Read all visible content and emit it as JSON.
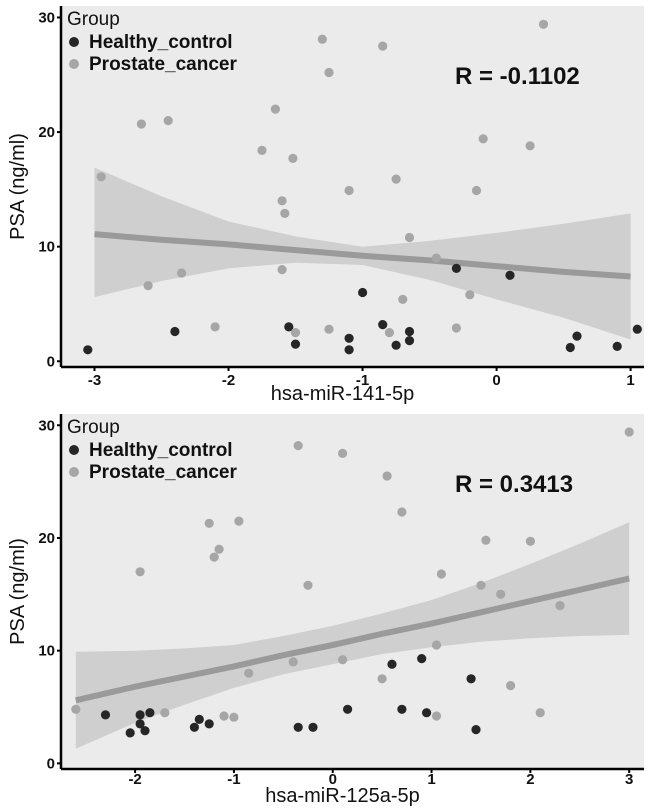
{
  "chart_data": [
    {
      "type": "scatter",
      "xlabel": "hsa-miR-141-5p",
      "ylabel": "PSA (ng/ml)",
      "xlim": [
        -3.25,
        1.1
      ],
      "ylim": [
        -0.5,
        31
      ],
      "xticks": [
        -3,
        -2,
        -1,
        0,
        1
      ],
      "yticks": [
        0,
        10,
        20,
        30
      ],
      "grid": false,
      "legend_position": "top-left",
      "legend_title": "Group",
      "annotation": "R = -0.1102",
      "regression": {
        "x": [
          -3.0,
          -2.5,
          -2.0,
          -1.5,
          -1.0,
          -0.5,
          0.0,
          0.5,
          1.0
        ],
        "y": [
          11.1,
          10.6,
          10.2,
          9.7,
          9.2,
          8.8,
          8.3,
          7.8,
          7.4
        ],
        "lower": [
          5.6,
          7.0,
          8.1,
          8.6,
          8.4,
          7.1,
          5.4,
          3.8,
          1.9
        ],
        "upper": [
          16.9,
          14.4,
          12.2,
          10.9,
          10.0,
          10.5,
          11.2,
          12.0,
          12.9
        ]
      },
      "series": [
        {
          "name": "Healthy_control",
          "color": "#262626",
          "points": [
            [
              -3.05,
              1.0
            ],
            [
              -2.4,
              2.6
            ],
            [
              -1.55,
              3.0
            ],
            [
              -1.5,
              1.5
            ],
            [
              -1.1,
              1.0
            ],
            [
              -1.1,
              2.0
            ],
            [
              -1.0,
              6.0
            ],
            [
              -0.85,
              3.2
            ],
            [
              -0.75,
              1.4
            ],
            [
              -0.65,
              2.6
            ],
            [
              -0.65,
              1.8
            ],
            [
              -0.3,
              8.1
            ],
            [
              0.1,
              7.5
            ],
            [
              0.6,
              2.2
            ],
            [
              0.55,
              1.2
            ],
            [
              0.9,
              1.3
            ],
            [
              1.05,
              2.8
            ]
          ]
        },
        {
          "name": "Prostate_cancer",
          "color": "#a6a6a6",
          "points": [
            [
              -2.95,
              16.1
            ],
            [
              -2.65,
              20.7
            ],
            [
              -2.45,
              21.0
            ],
            [
              -2.6,
              6.6
            ],
            [
              -2.35,
              7.7
            ],
            [
              -2.1,
              3.0
            ],
            [
              -1.75,
              18.4
            ],
            [
              -1.65,
              22.0
            ],
            [
              -1.6,
              14.0
            ],
            [
              -1.58,
              12.9
            ],
            [
              -1.52,
              17.7
            ],
            [
              -1.6,
              8.0
            ],
            [
              -1.5,
              2.5
            ],
            [
              -1.3,
              28.1
            ],
            [
              -1.25,
              25.2
            ],
            [
              -1.25,
              2.8
            ],
            [
              -1.1,
              14.9
            ],
            [
              -0.85,
              27.5
            ],
            [
              -0.75,
              15.9
            ],
            [
              -0.7,
              5.4
            ],
            [
              -0.65,
              10.8
            ],
            [
              -0.8,
              2.5
            ],
            [
              -0.3,
              2.9
            ],
            [
              -0.45,
              9.0
            ],
            [
              -0.2,
              5.8
            ],
            [
              -0.15,
              14.9
            ],
            [
              -0.1,
              19.4
            ],
            [
              0.25,
              18.8
            ],
            [
              0.35,
              29.4
            ]
          ]
        }
      ]
    },
    {
      "type": "scatter",
      "xlabel": "hsa-miR-125a-5p",
      "ylabel": "PSA (ng/ml)",
      "xlim": [
        -2.75,
        3.15
      ],
      "ylim": [
        -0.5,
        31
      ],
      "xticks": [
        -2,
        -1,
        0,
        1,
        2,
        3
      ],
      "yticks": [
        0,
        10,
        20,
        30
      ],
      "grid": false,
      "legend_position": "top-left",
      "legend_title": "Group",
      "annotation": "R = 0.3413",
      "regression": {
        "x": [
          -2.6,
          -2.0,
          -1.5,
          -1.0,
          -0.5,
          0.0,
          0.5,
          1.0,
          1.5,
          2.0,
          2.5,
          3.0
        ],
        "y": [
          5.6,
          6.8,
          7.7,
          8.6,
          9.6,
          10.5,
          11.5,
          12.4,
          13.4,
          14.4,
          15.4,
          16.4
        ],
        "lower": [
          1.3,
          3.6,
          5.2,
          6.7,
          7.9,
          8.8,
          9.7,
          10.3,
          10.8,
          11.1,
          11.3,
          11.4
        ],
        "upper": [
          9.9,
          10.0,
          10.2,
          10.5,
          11.3,
          12.2,
          13.3,
          14.5,
          16.0,
          17.7,
          19.5,
          21.4
        ]
      },
      "series": [
        {
          "name": "Healthy_control",
          "color": "#262626",
          "points": [
            [
              -2.3,
              4.3
            ],
            [
              -2.05,
              2.7
            ],
            [
              -1.95,
              3.5
            ],
            [
              -1.95,
              4.3
            ],
            [
              -1.9,
              2.9
            ],
            [
              -1.85,
              4.5
            ],
            [
              -1.4,
              3.2
            ],
            [
              -1.35,
              3.9
            ],
            [
              -1.25,
              3.5
            ],
            [
              -0.35,
              3.2
            ],
            [
              -0.2,
              3.2
            ],
            [
              0.15,
              4.8
            ],
            [
              0.6,
              8.8
            ],
            [
              0.7,
              4.8
            ],
            [
              0.9,
              9.3
            ],
            [
              0.95,
              4.5
            ],
            [
              1.4,
              7.5
            ],
            [
              1.45,
              3.0
            ]
          ]
        },
        {
          "name": "Prostate_cancer",
          "color": "#a6a6a6",
          "points": [
            [
              -2.6,
              4.8
            ],
            [
              -1.95,
              17.0
            ],
            [
              -1.7,
              4.5
            ],
            [
              -1.25,
              21.3
            ],
            [
              -1.2,
              18.3
            ],
            [
              -1.15,
              19.0
            ],
            [
              -1.1,
              4.2
            ],
            [
              -1.0,
              4.1
            ],
            [
              -0.95,
              21.5
            ],
            [
              -0.85,
              8.0
            ],
            [
              -0.4,
              9.0
            ],
            [
              -0.35,
              28.2
            ],
            [
              -0.25,
              15.8
            ],
            [
              0.1,
              27.5
            ],
            [
              0.1,
              9.2
            ],
            [
              0.55,
              25.5
            ],
            [
              0.7,
              22.3
            ],
            [
              0.5,
              7.5
            ],
            [
              1.05,
              4.2
            ],
            [
              1.05,
              10.5
            ],
            [
              1.1,
              16.8
            ],
            [
              1.5,
              15.8
            ],
            [
              1.55,
              19.8
            ],
            [
              1.7,
              15.0
            ],
            [
              1.8,
              6.9
            ],
            [
              2.0,
              19.7
            ],
            [
              2.1,
              4.5
            ],
            [
              2.3,
              14.0
            ],
            [
              3.0,
              29.4
            ]
          ]
        }
      ]
    }
  ]
}
